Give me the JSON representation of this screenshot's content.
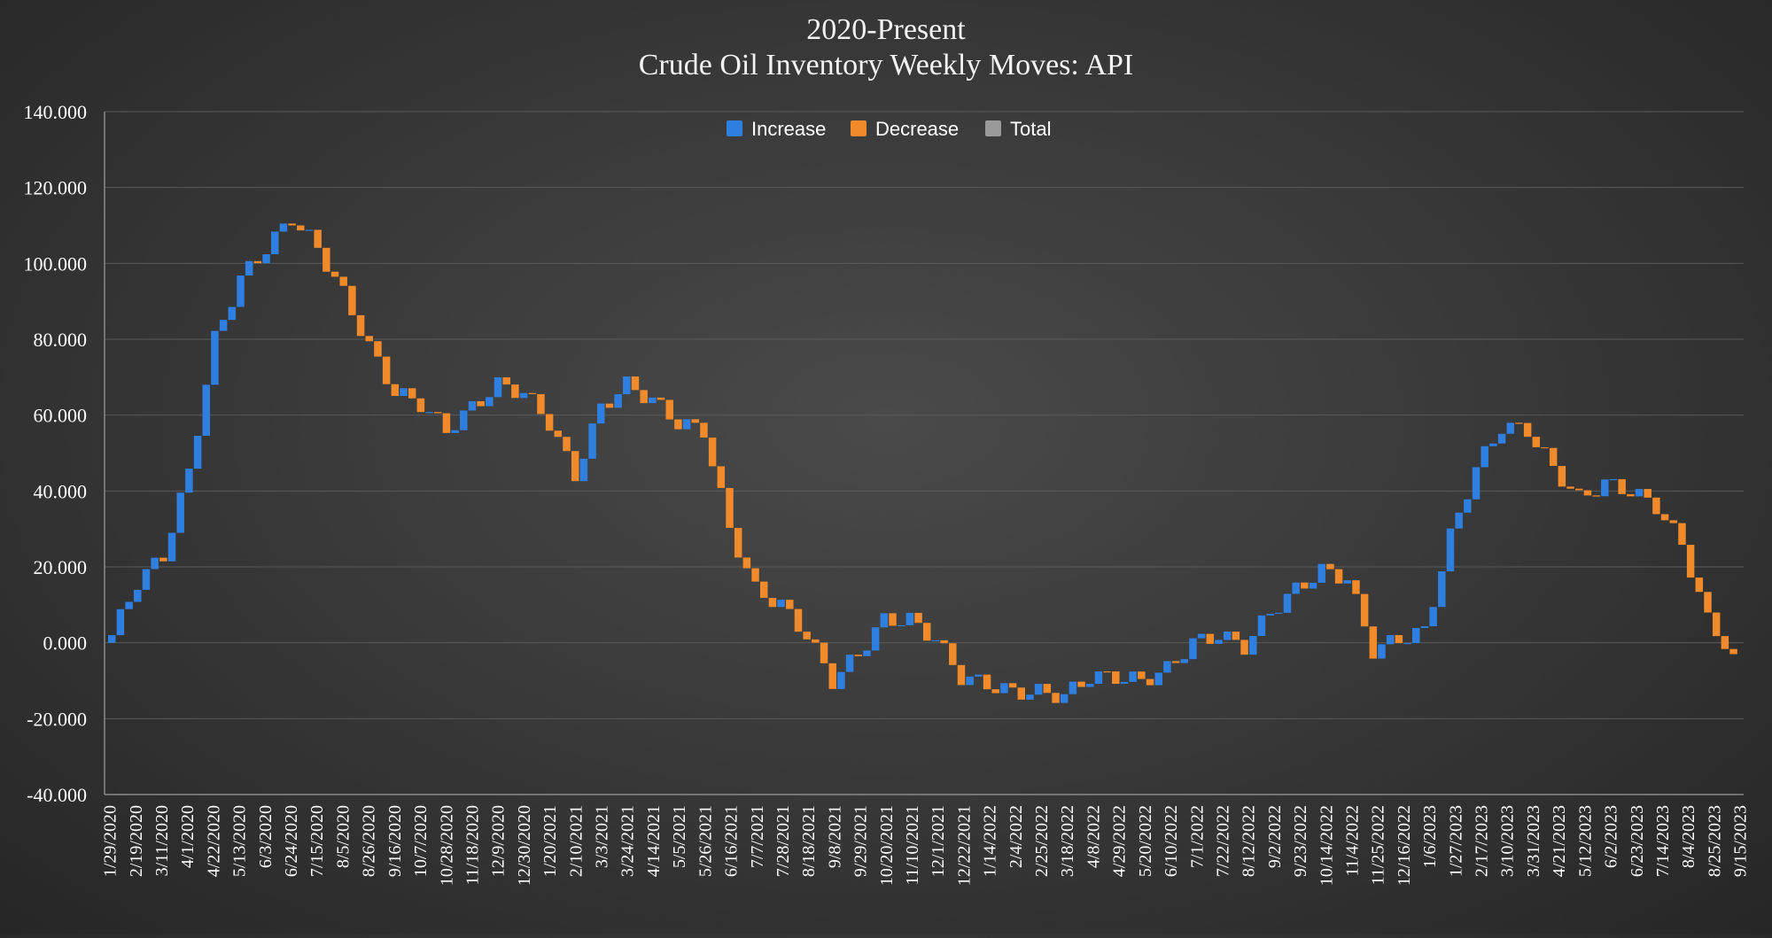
{
  "chart_data": {
    "type": "waterfall",
    "title": "2020-Present",
    "subtitle": "Crude Oil Inventory Weekly Moves:  API",
    "xlabel": "",
    "ylabel": "",
    "ylim": [
      -40000,
      140000
    ],
    "yticks": [
      -40000,
      -20000,
      0,
      20000,
      40000,
      60000,
      80000,
      100000,
      120000,
      140000
    ],
    "ytick_labels": [
      "-40.000",
      "-20.000",
      "0.000",
      "20.000",
      "40.000",
      "60.000",
      "80.000",
      "100.000",
      "120.000",
      "140.000"
    ],
    "legend": {
      "position": "top-center",
      "entries": [
        "Increase",
        "Decrease",
        "Total"
      ]
    },
    "colors": {
      "increase": "#2f7fe0",
      "decrease": "#f08a2a",
      "total": "#9a9a9a",
      "grid": "#5a5a5a",
      "axis": "#8a8a8a"
    },
    "grid": true,
    "x_tick_labels": [
      "1/29/2020",
      "2/19/2020",
      "3/11/2020",
      "4/1/2020",
      "4/22/2020",
      "5/13/2020",
      "6/3/2020",
      "6/24/2020",
      "7/15/2020",
      "8/5/2020",
      "8/26/2020",
      "9/16/2020",
      "10/7/2020",
      "10/28/2020",
      "11/18/2020",
      "12/9/2020",
      "12/30/2020",
      "1/20/2021",
      "2/10/2021",
      "3/3/2021",
      "3/24/2021",
      "4/14/2021",
      "5/5/2021",
      "5/26/2021",
      "6/16/2021",
      "7/7/2021",
      "7/28/2021",
      "8/18/2021",
      "9/8/2021",
      "9/29/2021",
      "10/20/2021",
      "11/10/2021",
      "12/1/2021",
      "12/22/2021",
      "1/14/2022",
      "2/4/2022",
      "2/25/2022",
      "3/18/2022",
      "4/8/2022",
      "4/29/2022",
      "5/20/2022",
      "6/10/2022",
      "7/1/2022",
      "7/22/2022",
      "8/12/2022",
      "9/2/2022",
      "9/23/2022",
      "10/14/2022",
      "11/4/2022",
      "11/25/2022",
      "12/16/2022",
      "1/6/2023",
      "1/27/2023",
      "2/17/2023",
      "3/10/2023",
      "3/31/2023",
      "4/21/2023",
      "5/12/2023",
      "6/2/2023",
      "6/23/2023",
      "7/14/2023",
      "8/4/2023",
      "8/25/2023",
      "9/15/2023"
    ],
    "cumulative_at_ticks": [
      2000,
      16000,
      23000,
      45000,
      80000,
      96000,
      104000,
      112000,
      104000,
      92000,
      78000,
      66000,
      63000,
      56000,
      62000,
      68000,
      66000,
      58000,
      44000,
      62000,
      68000,
      64000,
      58000,
      56000,
      30000,
      14000,
      10000,
      2000,
      -10000,
      -3000,
      6000,
      6000,
      1000,
      -9000,
      -11000,
      -13000,
      -13000,
      -14000,
      -9000,
      -9000,
      -10000,
      -7000,
      0,
      2000,
      -1000,
      8000,
      14000,
      19000,
      17000,
      -2000,
      1000,
      3000,
      28000,
      46000,
      57000,
      56000,
      46000,
      38000,
      42000,
      40000,
      36000,
      26000,
      6000,
      -3000
    ],
    "series": [
      {
        "name": "Increase",
        "color": "#2f7fe0"
      },
      {
        "name": "Decrease",
        "color": "#f08a2a"
      },
      {
        "name": "Total",
        "color": "#9a9a9a"
      }
    ]
  }
}
